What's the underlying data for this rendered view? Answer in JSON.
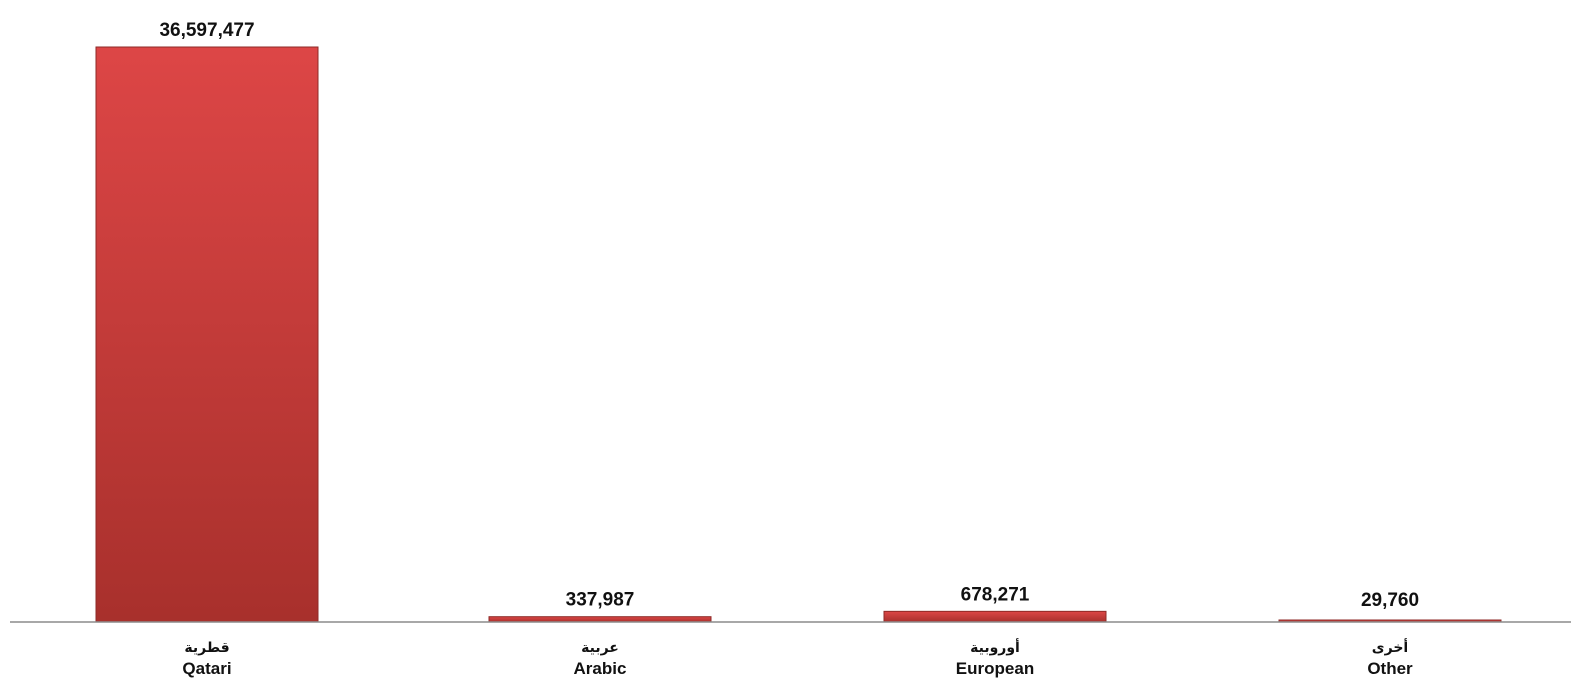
{
  "chart_data": {
    "type": "bar",
    "categories": [
      {
        "ar": "قطرية",
        "en": "Qatari"
      },
      {
        "ar": "عربية",
        "en": "Arabic"
      },
      {
        "ar": "أوروبية",
        "en": "European"
      },
      {
        "ar": "أخرى",
        "en": "Other"
      }
    ],
    "values": [
      36597477,
      337987,
      678271,
      29760
    ],
    "value_labels": [
      "36,597,477",
      "337,987",
      "678,271",
      "29,760"
    ],
    "ylim": [
      0,
      36597477
    ],
    "grid": false,
    "legend": "none",
    "colors": {
      "bar_top": "#dd4646",
      "bar_bottom": "#a8302c",
      "bar_edge": "#8e2a27",
      "axis": "#8c8c8c"
    }
  }
}
